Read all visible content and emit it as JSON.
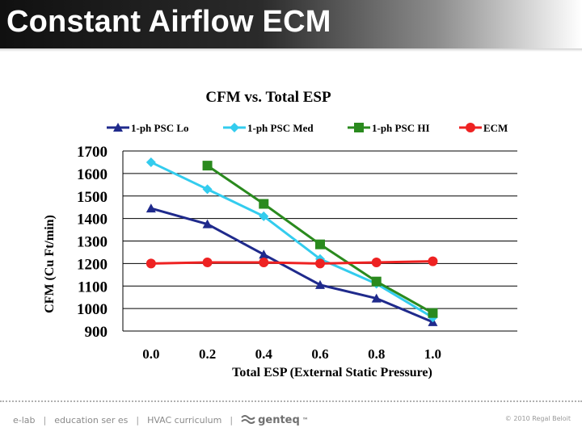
{
  "slide": {
    "title": "Constant Airflow ECM"
  },
  "footer": {
    "items": [
      "e-lab",
      "education ser es",
      "HVAC curriculum"
    ],
    "separator": "|",
    "brand": "genteq",
    "brand_mark": "™",
    "brand_icon": "wave-logo-icon",
    "copyright": "© 2010 Regal Beloit"
  },
  "colors": {
    "header_dark": "#101010",
    "series_lo": "#1f2a8c",
    "series_med": "#33ccee",
    "series_hi": "#2a8a1e",
    "series_ecm": "#ee2222"
  },
  "chart_data": {
    "type": "line",
    "title": "CFM vs. Total ESP",
    "xlabel": "Total ESP (External Static Pressure)",
    "ylabel": "CFM (Cu Ft/min)",
    "x": [
      0.0,
      0.2,
      0.4,
      0.6,
      0.8,
      1.0
    ],
    "x_tick_labels": [
      "0.0",
      "0.2",
      "0.4",
      "0.6",
      "0.8",
      "1.0"
    ],
    "xlim": [
      -0.1,
      1.3
    ],
    "ylim": [
      900,
      1700
    ],
    "y_ticks": [
      900,
      1000,
      1100,
      1200,
      1300,
      1400,
      1500,
      1600,
      1700
    ],
    "y_tick_labels": [
      "900",
      "1000",
      "1100",
      "1200",
      "1300",
      "1400",
      "1500",
      "1600",
      "1700"
    ],
    "grid": "horizontal",
    "legend_position": "top",
    "series": [
      {
        "name": "1-ph PSC Lo",
        "marker": "triangle",
        "color": "#1f2a8c",
        "x": [
          0.0,
          0.2,
          0.4,
          0.6,
          0.8,
          1.0
        ],
        "values": [
          1445,
          1375,
          1240,
          1105,
          1045,
          940
        ]
      },
      {
        "name": "1-ph PSC Med",
        "marker": "diamond",
        "color": "#33ccee",
        "x": [
          0.0,
          0.2,
          0.4,
          0.6,
          0.8,
          1.0
        ],
        "values": [
          1650,
          1530,
          1410,
          1220,
          1110,
          960
        ]
      },
      {
        "name": "1-ph PSC HI",
        "marker": "square",
        "color": "#2a8a1e",
        "x": [
          0.2,
          0.4,
          0.6,
          0.8,
          1.0
        ],
        "values": [
          1635,
          1465,
          1285,
          1120,
          980
        ]
      },
      {
        "name": "ECM",
        "marker": "circle",
        "color": "#ee2222",
        "x": [
          0.0,
          0.2,
          0.4,
          0.6,
          0.8,
          1.0
        ],
        "values": [
          1200,
          1205,
          1205,
          1200,
          1205,
          1210
        ]
      }
    ]
  }
}
